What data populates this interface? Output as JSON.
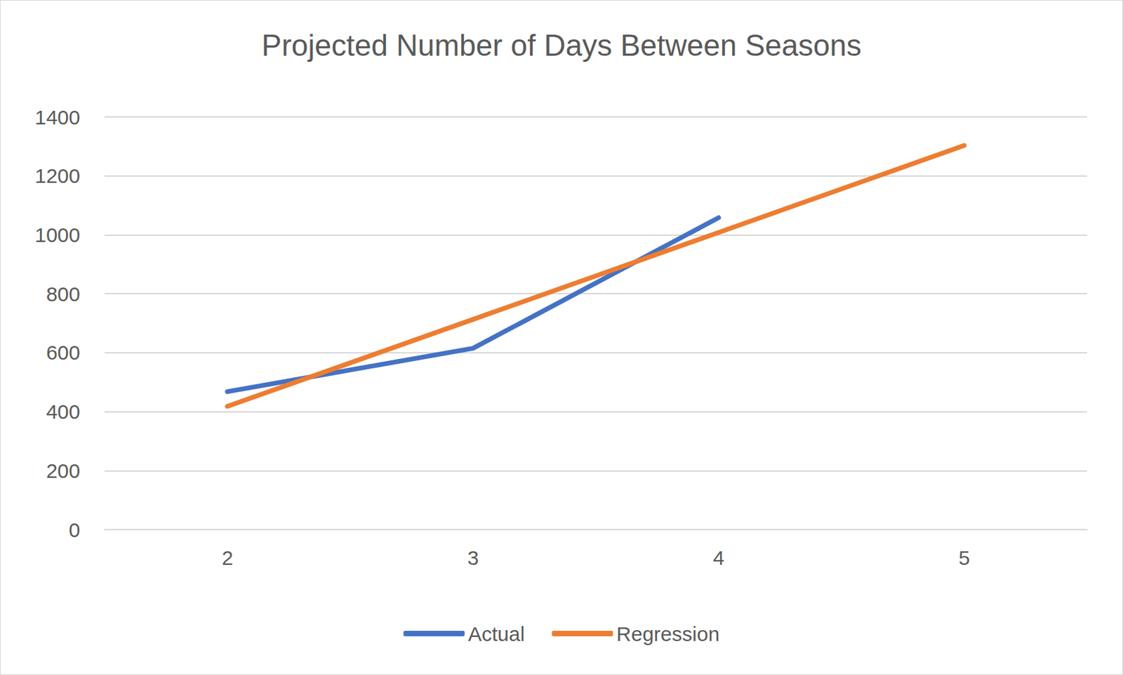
{
  "chart_data": {
    "type": "line",
    "title": "Projected Number of Days Between Seasons",
    "categories": [
      "2",
      "3",
      "4",
      "5"
    ],
    "series": [
      {
        "name": "Actual",
        "color": "#4472c4",
        "values": [
          468,
          615,
          1058,
          null
        ]
      },
      {
        "name": "Regression",
        "color": "#ed7d31",
        "values": [
          418,
          713,
          1008,
          1303
        ]
      }
    ],
    "ylim": [
      0,
      1400
    ],
    "yticks": [
      0,
      200,
      400,
      600,
      800,
      1000,
      1200,
      1400
    ],
    "grid": true,
    "legend": "bottom"
  }
}
